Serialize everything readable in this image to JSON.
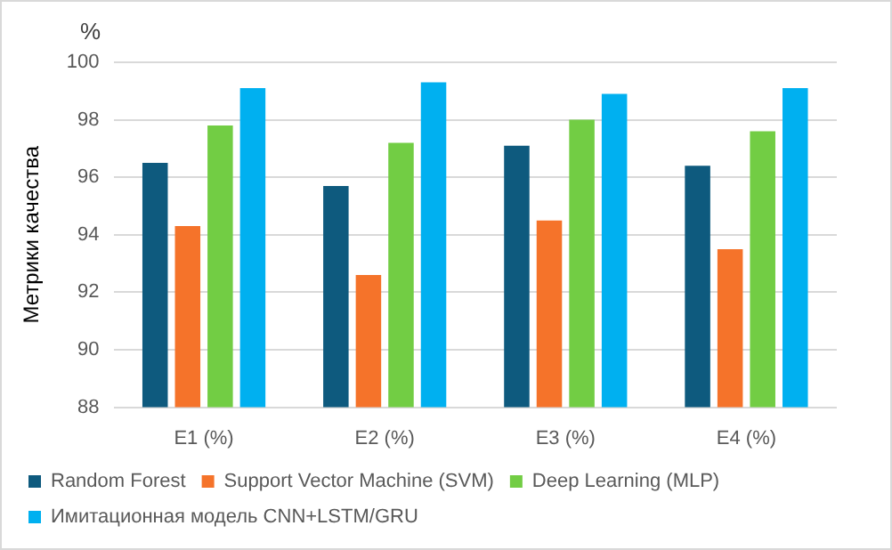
{
  "chart_data": {
    "type": "bar",
    "ylabel": "Метрики качества",
    "annotations": [
      "%"
    ],
    "categories": [
      "E1 (%)",
      "E2 (%)",
      "E3 (%)",
      "E4 (%)"
    ],
    "series": [
      {
        "name": "Random Forest",
        "color": "#0e5a7e",
        "values": [
          96.5,
          95.7,
          97.1,
          96.4
        ]
      },
      {
        "name": "Support Vector Machine (SVM)",
        "color": "#f5732a",
        "values": [
          94.3,
          92.6,
          94.5,
          93.5
        ]
      },
      {
        "name": "Deep Learning (MLP)",
        "color": "#72cd44",
        "values": [
          97.8,
          97.2,
          98.0,
          97.6
        ]
      },
      {
        "name": "Имитационная модель CNN+LSTM/GRU",
        "color": "#00b0f0",
        "values": [
          99.1,
          99.3,
          98.9,
          99.1
        ]
      }
    ],
    "ylim": [
      88,
      100
    ],
    "yticks": [
      88,
      90,
      92,
      94,
      96,
      98,
      100
    ],
    "grid": "y",
    "legend": "bottom"
  }
}
